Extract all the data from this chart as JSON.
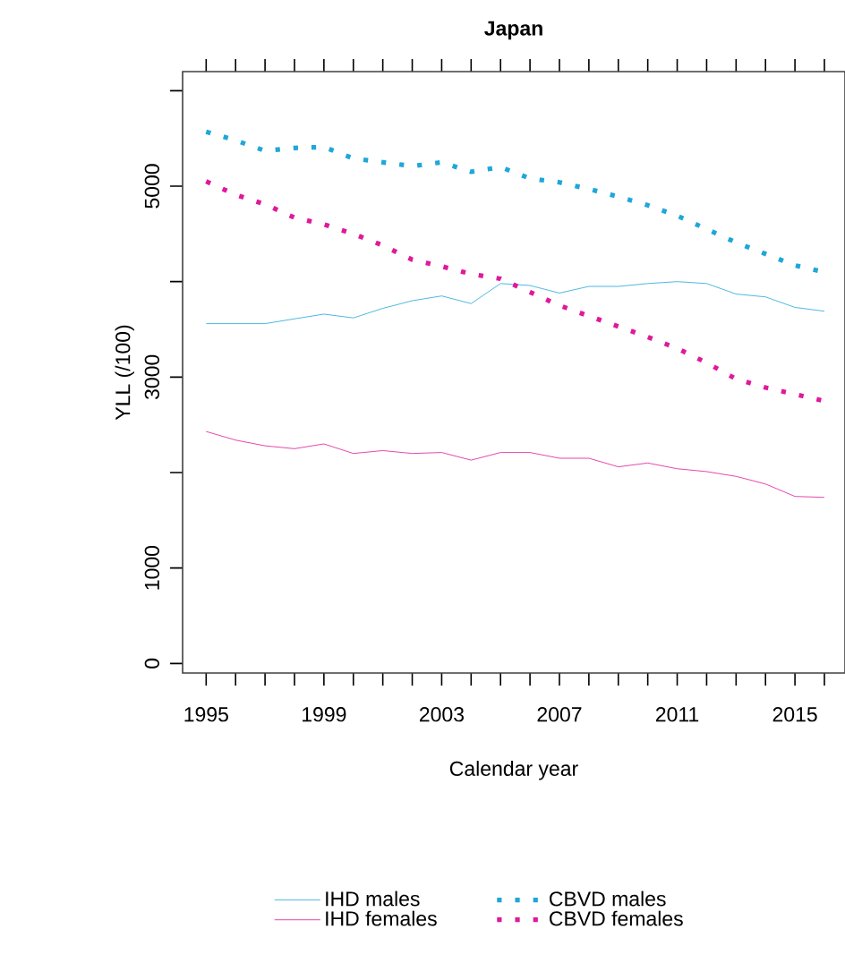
{
  "chart_data": {
    "type": "line",
    "title": "Japan",
    "xlabel": "Calendar year",
    "ylabel": "YLL (/100)",
    "x": [
      1995,
      1996,
      1997,
      1998,
      1999,
      2000,
      2001,
      2002,
      2003,
      2004,
      2005,
      2006,
      2007,
      2008,
      2009,
      2010,
      2011,
      2012,
      2013,
      2014,
      2015,
      2016
    ],
    "series": [
      {
        "name": "IHD males",
        "color": "#1fa7d8",
        "line_style": "solid",
        "values": [
          3560,
          3560,
          3560,
          3610,
          3660,
          3620,
          3720,
          3800,
          3850,
          3770,
          3980,
          3960,
          3880,
          3950,
          3950,
          3980,
          4000,
          3980,
          3870,
          3840,
          3730,
          3690
        ]
      },
      {
        "name": "IHD females",
        "color": "#e0189b",
        "line_style": "solid",
        "values": [
          2430,
          2340,
          2280,
          2250,
          2300,
          2200,
          2230,
          2200,
          2210,
          2130,
          2210,
          2210,
          2150,
          2150,
          2060,
          2100,
          2040,
          2010,
          1960,
          1880,
          1750,
          1740
        ]
      },
      {
        "name": "CBVD males",
        "color": "#1fa7d8",
        "line_style": "dotted",
        "values": [
          5570,
          5480,
          5370,
          5400,
          5410,
          5290,
          5250,
          5210,
          5250,
          5150,
          5200,
          5080,
          5040,
          4970,
          4890,
          4800,
          4690,
          4550,
          4410,
          4290,
          4170,
          4100
        ]
      },
      {
        "name": "CBVD females",
        "color": "#e0189b",
        "line_style": "dotted",
        "values": [
          5050,
          4910,
          4810,
          4670,
          4600,
          4500,
          4380,
          4230,
          4160,
          4080,
          4030,
          3890,
          3750,
          3640,
          3530,
          3420,
          3300,
          3150,
          2980,
          2890,
          2820,
          2750
        ]
      }
    ],
    "xlim": [
      1994.2,
      2016.7
    ],
    "xticks": [
      1995,
      {
        "value": 1996,
        "label": null
      },
      {
        "value": 1997,
        "label": null
      },
      {
        "value": 1998,
        "label": null
      },
      1999,
      {
        "value": 2000,
        "label": null
      },
      {
        "value": 2001,
        "label": null
      },
      {
        "value": 2002,
        "label": null
      },
      2003,
      {
        "value": 2004,
        "label": null
      },
      {
        "value": 2005,
        "label": null
      },
      {
        "value": 2006,
        "label": null
      },
      2007,
      {
        "value": 2008,
        "label": null
      },
      {
        "value": 2009,
        "label": null
      },
      {
        "value": 2010,
        "label": null
      },
      2011,
      {
        "value": 2012,
        "label": null
      },
      {
        "value": 2013,
        "label": null
      },
      {
        "value": 2014,
        "label": null
      },
      2015,
      {
        "value": 2016,
        "label": null
      }
    ],
    "ylim": [
      -100,
      6200
    ],
    "yticks": [
      0,
      1000,
      {
        "value": 2000,
        "label": null
      },
      3000,
      {
        "value": 4000,
        "label": null
      },
      5000,
      {
        "value": 6000,
        "label": null
      }
    ],
    "legend": "bottom",
    "grid": false
  }
}
